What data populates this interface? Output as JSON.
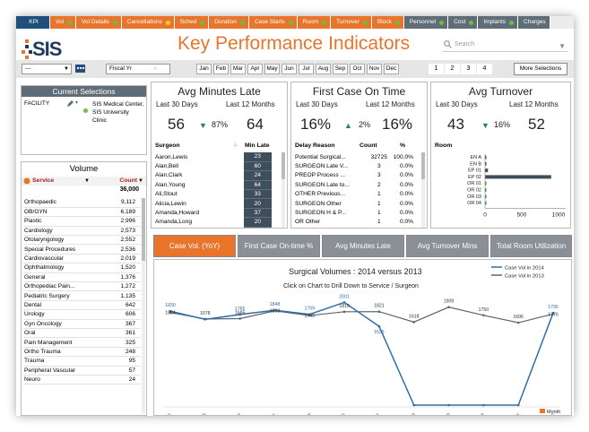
{
  "tabs": [
    {
      "label": "KPI",
      "style": "kpi",
      "dot": ""
    },
    {
      "label": "Vol",
      "style": "orange",
      "dot": "green"
    },
    {
      "label": "Vol Details",
      "style": "orange",
      "dot": "green"
    },
    {
      "label": "Cancellations",
      "style": "orange",
      "dot": "yellow"
    },
    {
      "label": "Sched",
      "style": "orange",
      "dot": "green"
    },
    {
      "label": "Duration",
      "style": "orange",
      "dot": "green"
    },
    {
      "label": "Case Starts",
      "style": "orange",
      "dot": "green"
    },
    {
      "label": "Room",
      "style": "orange",
      "dot": "green"
    },
    {
      "label": "Turnover",
      "style": "orange",
      "dot": "green"
    },
    {
      "label": "Block",
      "style": "orange",
      "dot": "green"
    },
    {
      "label": "Personnel",
      "style": "gray",
      "dot": "green"
    },
    {
      "label": "Cost",
      "style": "gray",
      "dot": "green"
    },
    {
      "label": "Implants",
      "style": "gray",
      "dot": "green"
    },
    {
      "label": "Charges",
      "style": "gray",
      "dot": ""
    }
  ],
  "logo": {
    "text": "SIS"
  },
  "page_title": "Key Performance Indicators",
  "search": {
    "placeholder": "Search"
  },
  "filters": {
    "first_select": "---",
    "fiscal_select": "Fiscal Yr",
    "months": [
      "Jan",
      "Feb",
      "Mar",
      "Apr",
      "May",
      "Jun",
      "Jul",
      "Aug",
      "Sep",
      "Oct",
      "Nov",
      "Dec"
    ],
    "quarters": [
      "1",
      "2",
      "3",
      "4"
    ],
    "more_selections": "More Selections"
  },
  "current_selections": {
    "title": "Current Selections",
    "field": "FACILITY",
    "value": "SIS Medical Center, SIS University Clinic"
  },
  "volume": {
    "title": "Volume",
    "col_service": "Service",
    "col_count": "Count",
    "total": "36,000",
    "rows": [
      {
        "service": "Orthopaedic",
        "count": "9,112"
      },
      {
        "service": "OB/GYN",
        "count": "6,189"
      },
      {
        "service": "Plastic",
        "count": "2,996"
      },
      {
        "service": "Cardiology",
        "count": "2,573"
      },
      {
        "service": "Otolaryngology",
        "count": "2,552"
      },
      {
        "service": "Special Procedures",
        "count": "2,536"
      },
      {
        "service": "Cardiovascular",
        "count": "2,019"
      },
      {
        "service": "Ophthalmology",
        "count": "1,520"
      },
      {
        "service": "General",
        "count": "1,376"
      },
      {
        "service": "Orthopediac Pain...",
        "count": "1,272"
      },
      {
        "service": "Pediatric Surgery",
        "count": "1,135"
      },
      {
        "service": "Dental",
        "count": "642"
      },
      {
        "service": "Urology",
        "count": "606"
      },
      {
        "service": "Gyn Oncology",
        "count": "367"
      },
      {
        "service": "Oral",
        "count": "361"
      },
      {
        "service": "Pain Management",
        "count": "325"
      },
      {
        "service": "Ortho Trauma",
        "count": "248"
      },
      {
        "service": "Trauma",
        "count": "95"
      },
      {
        "service": "Peripheral Vascular",
        "count": "57"
      },
      {
        "service": "Neuro",
        "count": "24"
      }
    ]
  },
  "avg_minutes_late": {
    "title": "Avg Minutes Late",
    "label_30": "Last 30 Days",
    "label_12": "Last 12 Months",
    "val_30": "56",
    "pct": "87%",
    "val_12": "64",
    "col_surgeon": "Surgeon",
    "col_min": "Min Late",
    "rows": [
      {
        "name": "Aaron,Lewis",
        "min": "23"
      },
      {
        "name": "Alan,Bell",
        "min": "60"
      },
      {
        "name": "Alan,Clark",
        "min": "24"
      },
      {
        "name": "Alan,Young",
        "min": "64"
      },
      {
        "name": "Ali,Stout",
        "min": "33"
      },
      {
        "name": "Alicia,Lewin",
        "min": "20"
      },
      {
        "name": "Amanda,Howard",
        "min": "37"
      },
      {
        "name": "Amanda,Long",
        "min": "20"
      }
    ]
  },
  "first_case": {
    "title": "First Case On Time",
    "label_30": "Last 30 Days",
    "label_12": "Last 12 Months",
    "val_30": "16%",
    "pct": "2%",
    "val_12": "16%",
    "col_reason": "Delay Reason",
    "col_count": "Count",
    "col_pct": "%",
    "rows": [
      {
        "reason": "Potential Surgical...",
        "count": "32725",
        "pct": "100.0%"
      },
      {
        "reason": "SURGEON Late V...",
        "count": "3",
        "pct": "0.0%"
      },
      {
        "reason": "PREOP Process ...",
        "count": "3",
        "pct": "0.0%"
      },
      {
        "reason": "SURGEON Late to...",
        "count": "2",
        "pct": "0.0%"
      },
      {
        "reason": "OTHER Previous...",
        "count": "1",
        "pct": "0.0%"
      },
      {
        "reason": "SURGEON Other",
        "count": "1",
        "pct": "0.0%"
      },
      {
        "reason": "SURGEON H & P...",
        "count": "1",
        "pct": "0.0%"
      },
      {
        "reason": "OR Other",
        "count": "1",
        "pct": "0.0%"
      }
    ]
  },
  "avg_turnover": {
    "title": "Avg Turnover",
    "label_30": "Last 30 Days",
    "label_12": "Last 12 Months",
    "val_30": "43",
    "pct": "16%",
    "val_12": "52",
    "room_label": "Room",
    "rooms": [
      "EN A",
      "EN B",
      "EP 01",
      "EP 02",
      "OR 01",
      "OR 02",
      "OR 03",
      "OR 04"
    ],
    "room_values": [
      10,
      8,
      40,
      900,
      3,
      2,
      2,
      2
    ],
    "axis_ticks": [
      "0",
      "500",
      "1000"
    ]
  },
  "kpi_buttons": [
    {
      "label": "Case Vol. (YoY)",
      "active": true
    },
    {
      "label": "First Case On-time %",
      "active": false
    },
    {
      "label": "Avg Minutes Late",
      "active": false
    },
    {
      "label": "Avg Turnover Mins",
      "active": false
    },
    {
      "label": "Total Room Utilization",
      "active": false
    }
  ],
  "colors": {
    "orange": "#e8752b",
    "navy": "#1f4f7a",
    "gray": "#5f6d79",
    "series2014": "#2f6ea8",
    "series2013": "#5a6570"
  },
  "chart_data": {
    "type": "line",
    "title": "Surgical Volumes : 2014 versus 2013",
    "subtitle": "Click on Chart to Drill Down to Service / Surgeon",
    "categories": [
      "Jan",
      "Feb",
      "Mar",
      "Apr",
      "May",
      "Jun",
      "Jul",
      "Aug",
      "Sep",
      "Oct",
      "Nov",
      "Dec"
    ],
    "series": [
      {
        "name": "Case Vol in 2014",
        "values": [
          1830,
          1670,
          1765,
          1848,
          1769,
          2001,
          1535,
          0,
          0,
          0,
          0,
          1795
        ]
      },
      {
        "name": "Case Vol in 2013",
        "values": [
          1804,
          1678,
          1685,
          1838,
          1745,
          1819,
          1821,
          1618,
          1909,
          1750,
          1606,
          1776
        ]
      }
    ],
    "data_labels": [
      {
        "series": 0,
        "index": 0,
        "text": "1830"
      },
      {
        "series": 1,
        "index": 0,
        "text": "1804"
      },
      {
        "series": 1,
        "index": 1,
        "text": "1678"
      },
      {
        "series": 0,
        "index": 2,
        "text": "1765"
      },
      {
        "series": 1,
        "index": 2,
        "text": "1685"
      },
      {
        "series": 0,
        "index": 3,
        "text": "1848"
      },
      {
        "series": 1,
        "index": 3,
        "text": "1838"
      },
      {
        "series": 0,
        "index": 4,
        "text": "1769"
      },
      {
        "series": 1,
        "index": 4,
        "text": "1745"
      },
      {
        "series": 0,
        "index": 5,
        "text": "2001"
      },
      {
        "series": 1,
        "index": 5,
        "text": "1819"
      },
      {
        "series": 1,
        "index": 6,
        "text": "1821"
      },
      {
        "series": 0,
        "index": 6,
        "text": "1535"
      },
      {
        "series": 1,
        "index": 7,
        "text": "1618"
      },
      {
        "series": 1,
        "index": 8,
        "text": "1909"
      },
      {
        "series": 1,
        "index": 9,
        "text": "1750"
      },
      {
        "series": 1,
        "index": 10,
        "text": "1606"
      },
      {
        "series": 0,
        "index": 11,
        "text": "1795"
      },
      {
        "series": 1,
        "index": 11,
        "text": "1776"
      }
    ],
    "ylim": [
      0,
      2200
    ],
    "xlabel": "Month",
    "legend_position": "top-right"
  }
}
